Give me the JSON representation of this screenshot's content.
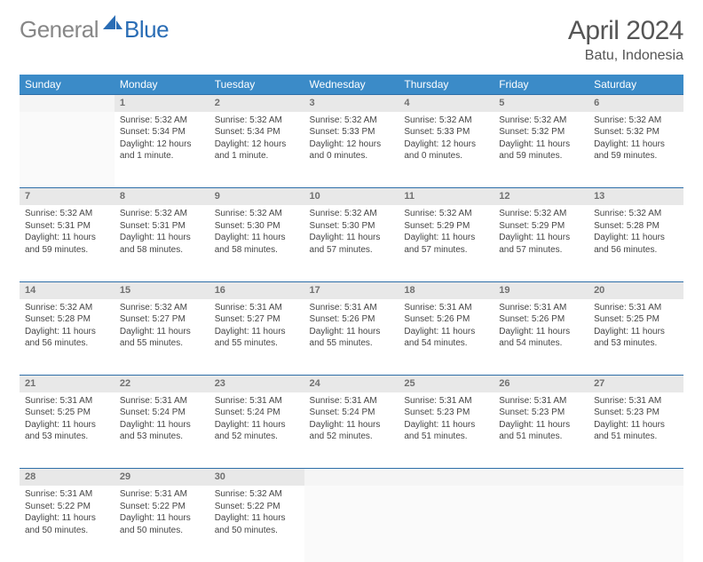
{
  "logo": {
    "text_gray": "General",
    "text_blue": "Blue"
  },
  "title": "April 2024",
  "location": "Batu, Indonesia",
  "colors": {
    "header_bg": "#3b8bc8",
    "header_text": "#ffffff",
    "daynum_bg": "#e8e8e8",
    "daynum_border": "#2d6ea8",
    "daynum_text": "#707070",
    "body_text": "#454545",
    "logo_gray": "#878787",
    "logo_blue": "#2a6db5"
  },
  "weekdays": [
    "Sunday",
    "Monday",
    "Tuesday",
    "Wednesday",
    "Thursday",
    "Friday",
    "Saturday"
  ],
  "weeks": [
    [
      null,
      {
        "n": "1",
        "sr": "Sunrise: 5:32 AM",
        "ss": "Sunset: 5:34 PM",
        "d1": "Daylight: 12 hours",
        "d2": "and 1 minute."
      },
      {
        "n": "2",
        "sr": "Sunrise: 5:32 AM",
        "ss": "Sunset: 5:34 PM",
        "d1": "Daylight: 12 hours",
        "d2": "and 1 minute."
      },
      {
        "n": "3",
        "sr": "Sunrise: 5:32 AM",
        "ss": "Sunset: 5:33 PM",
        "d1": "Daylight: 12 hours",
        "d2": "and 0 minutes."
      },
      {
        "n": "4",
        "sr": "Sunrise: 5:32 AM",
        "ss": "Sunset: 5:33 PM",
        "d1": "Daylight: 12 hours",
        "d2": "and 0 minutes."
      },
      {
        "n": "5",
        "sr": "Sunrise: 5:32 AM",
        "ss": "Sunset: 5:32 PM",
        "d1": "Daylight: 11 hours",
        "d2": "and 59 minutes."
      },
      {
        "n": "6",
        "sr": "Sunrise: 5:32 AM",
        "ss": "Sunset: 5:32 PM",
        "d1": "Daylight: 11 hours",
        "d2": "and 59 minutes."
      }
    ],
    [
      {
        "n": "7",
        "sr": "Sunrise: 5:32 AM",
        "ss": "Sunset: 5:31 PM",
        "d1": "Daylight: 11 hours",
        "d2": "and 59 minutes."
      },
      {
        "n": "8",
        "sr": "Sunrise: 5:32 AM",
        "ss": "Sunset: 5:31 PM",
        "d1": "Daylight: 11 hours",
        "d2": "and 58 minutes."
      },
      {
        "n": "9",
        "sr": "Sunrise: 5:32 AM",
        "ss": "Sunset: 5:30 PM",
        "d1": "Daylight: 11 hours",
        "d2": "and 58 minutes."
      },
      {
        "n": "10",
        "sr": "Sunrise: 5:32 AM",
        "ss": "Sunset: 5:30 PM",
        "d1": "Daylight: 11 hours",
        "d2": "and 57 minutes."
      },
      {
        "n": "11",
        "sr": "Sunrise: 5:32 AM",
        "ss": "Sunset: 5:29 PM",
        "d1": "Daylight: 11 hours",
        "d2": "and 57 minutes."
      },
      {
        "n": "12",
        "sr": "Sunrise: 5:32 AM",
        "ss": "Sunset: 5:29 PM",
        "d1": "Daylight: 11 hours",
        "d2": "and 57 minutes."
      },
      {
        "n": "13",
        "sr": "Sunrise: 5:32 AM",
        "ss": "Sunset: 5:28 PM",
        "d1": "Daylight: 11 hours",
        "d2": "and 56 minutes."
      }
    ],
    [
      {
        "n": "14",
        "sr": "Sunrise: 5:32 AM",
        "ss": "Sunset: 5:28 PM",
        "d1": "Daylight: 11 hours",
        "d2": "and 56 minutes."
      },
      {
        "n": "15",
        "sr": "Sunrise: 5:32 AM",
        "ss": "Sunset: 5:27 PM",
        "d1": "Daylight: 11 hours",
        "d2": "and 55 minutes."
      },
      {
        "n": "16",
        "sr": "Sunrise: 5:31 AM",
        "ss": "Sunset: 5:27 PM",
        "d1": "Daylight: 11 hours",
        "d2": "and 55 minutes."
      },
      {
        "n": "17",
        "sr": "Sunrise: 5:31 AM",
        "ss": "Sunset: 5:26 PM",
        "d1": "Daylight: 11 hours",
        "d2": "and 55 minutes."
      },
      {
        "n": "18",
        "sr": "Sunrise: 5:31 AM",
        "ss": "Sunset: 5:26 PM",
        "d1": "Daylight: 11 hours",
        "d2": "and 54 minutes."
      },
      {
        "n": "19",
        "sr": "Sunrise: 5:31 AM",
        "ss": "Sunset: 5:26 PM",
        "d1": "Daylight: 11 hours",
        "d2": "and 54 minutes."
      },
      {
        "n": "20",
        "sr": "Sunrise: 5:31 AM",
        "ss": "Sunset: 5:25 PM",
        "d1": "Daylight: 11 hours",
        "d2": "and 53 minutes."
      }
    ],
    [
      {
        "n": "21",
        "sr": "Sunrise: 5:31 AM",
        "ss": "Sunset: 5:25 PM",
        "d1": "Daylight: 11 hours",
        "d2": "and 53 minutes."
      },
      {
        "n": "22",
        "sr": "Sunrise: 5:31 AM",
        "ss": "Sunset: 5:24 PM",
        "d1": "Daylight: 11 hours",
        "d2": "and 53 minutes."
      },
      {
        "n": "23",
        "sr": "Sunrise: 5:31 AM",
        "ss": "Sunset: 5:24 PM",
        "d1": "Daylight: 11 hours",
        "d2": "and 52 minutes."
      },
      {
        "n": "24",
        "sr": "Sunrise: 5:31 AM",
        "ss": "Sunset: 5:24 PM",
        "d1": "Daylight: 11 hours",
        "d2": "and 52 minutes."
      },
      {
        "n": "25",
        "sr": "Sunrise: 5:31 AM",
        "ss": "Sunset: 5:23 PM",
        "d1": "Daylight: 11 hours",
        "d2": "and 51 minutes."
      },
      {
        "n": "26",
        "sr": "Sunrise: 5:31 AM",
        "ss": "Sunset: 5:23 PM",
        "d1": "Daylight: 11 hours",
        "d2": "and 51 minutes."
      },
      {
        "n": "27",
        "sr": "Sunrise: 5:31 AM",
        "ss": "Sunset: 5:23 PM",
        "d1": "Daylight: 11 hours",
        "d2": "and 51 minutes."
      }
    ],
    [
      {
        "n": "28",
        "sr": "Sunrise: 5:31 AM",
        "ss": "Sunset: 5:22 PM",
        "d1": "Daylight: 11 hours",
        "d2": "and 50 minutes."
      },
      {
        "n": "29",
        "sr": "Sunrise: 5:31 AM",
        "ss": "Sunset: 5:22 PM",
        "d1": "Daylight: 11 hours",
        "d2": "and 50 minutes."
      },
      {
        "n": "30",
        "sr": "Sunrise: 5:32 AM",
        "ss": "Sunset: 5:22 PM",
        "d1": "Daylight: 11 hours",
        "d2": "and 50 minutes."
      },
      null,
      null,
      null,
      null
    ]
  ]
}
